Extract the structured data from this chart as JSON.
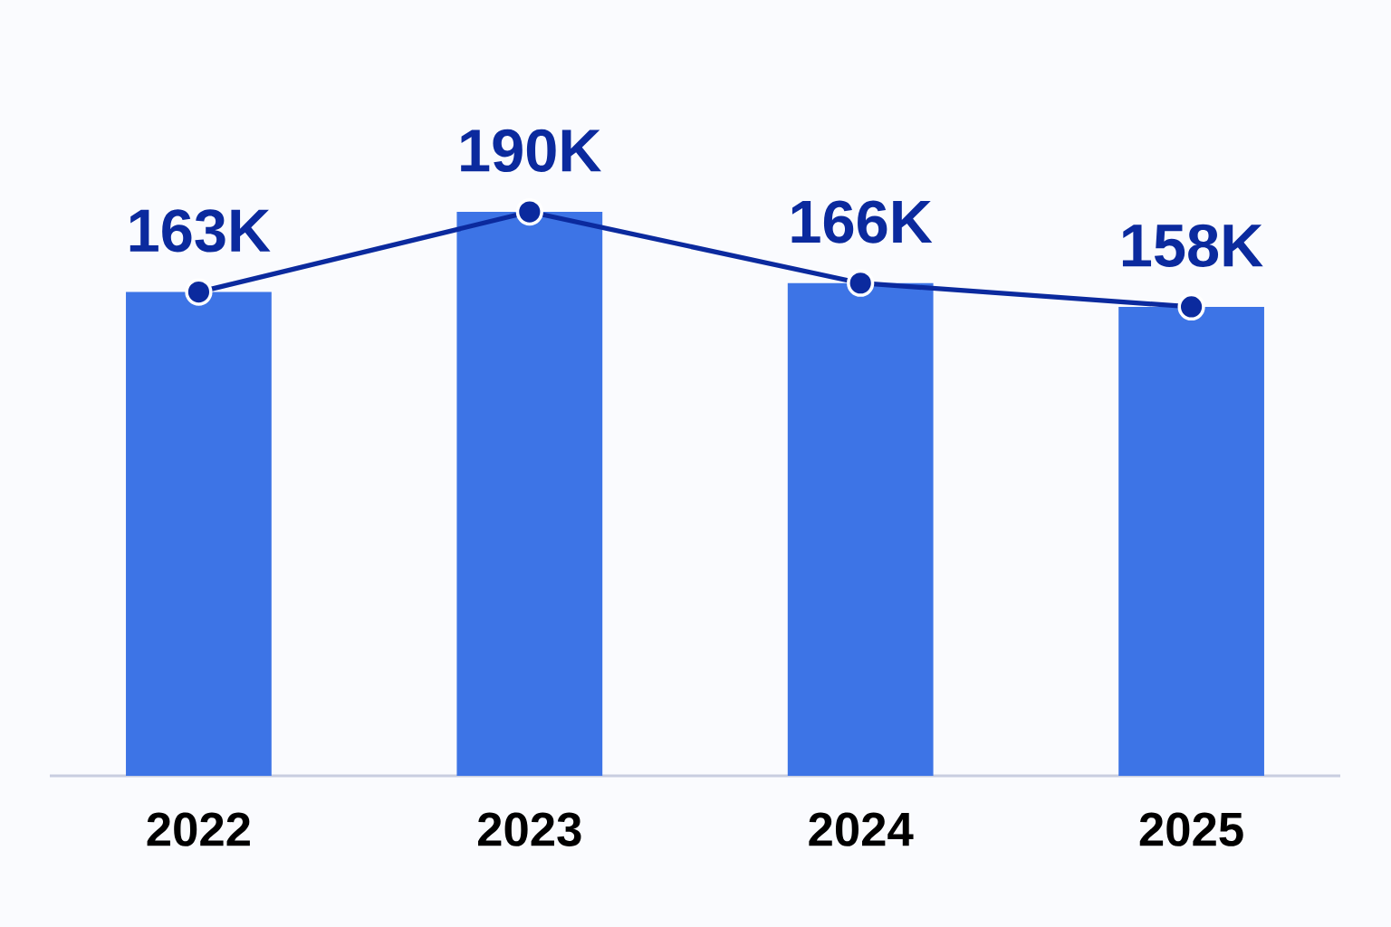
{
  "chart_data": {
    "type": "bar",
    "categories": [
      "2022",
      "2023",
      "2024",
      "2025"
    ],
    "marker": "circle",
    "series": [
      {
        "color": "#3d74e6",
        "values": [
          163000,
          190000,
          166000,
          158000
        ]
      },
      {
        "type": "line",
        "color": "#0b2a9e",
        "values": [
          163000,
          190000,
          166000,
          158000
        ],
        "value_labels": [
          "163K",
          "190K",
          "166K",
          "158K"
        ]
      }
    ]
  }
}
